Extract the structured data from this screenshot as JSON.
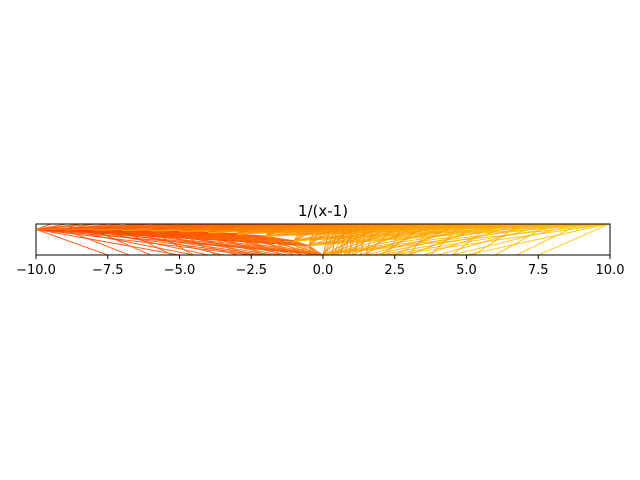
{
  "chart_data": {
    "type": "line",
    "title": "1/(x-1)",
    "xlabel": "",
    "ylabel": "",
    "xlim": [
      -10,
      10
    ],
    "ylim": [
      -1.0,
      0.1
    ],
    "xticks": [
      -10.0,
      -7.5,
      -5.0,
      -2.5,
      0.0,
      2.5,
      5.0,
      7.5,
      10.0
    ],
    "xtick_labels": [
      "−10.0",
      "−7.5",
      "−5.0",
      "−2.5",
      "0.0",
      "2.5",
      "5.0",
      "7.5",
      "10.0"
    ],
    "yticks": [],
    "grid": false,
    "legend": "none",
    "colormap": [
      "#ff0000",
      "#ff8000",
      "#ffff00"
    ],
    "description_of_marks": "chords connecting sample points of the function 1/(x-1) on the x-range, colored from red (left) to yellow (right)",
    "series": [
      {
        "values_x": [
          -10.0,
          -9.0,
          -8.0,
          -7.0,
          -6.0,
          -5.0,
          -4.0,
          -3.0,
          -2.0,
          -1.0,
          -0.5,
          0.0,
          0.25,
          0.5,
          0.75,
          1.25,
          1.5,
          1.75,
          2.0,
          3.0,
          4.0,
          5.0,
          6.0,
          7.0,
          8.0,
          9.0,
          10.0
        ],
        "values_y": [
          -0.0909,
          -0.1,
          -0.1111,
          -0.125,
          -0.1429,
          -0.1667,
          -0.2,
          -0.25,
          -0.3333,
          -0.5,
          -0.6667,
          -1.0,
          -1.3333,
          -2.0,
          -4.0,
          4.0,
          2.0,
          1.3333,
          1.0,
          0.5,
          0.3333,
          0.25,
          0.2,
          0.1667,
          0.1429,
          0.125,
          0.1111
        ]
      }
    ]
  }
}
